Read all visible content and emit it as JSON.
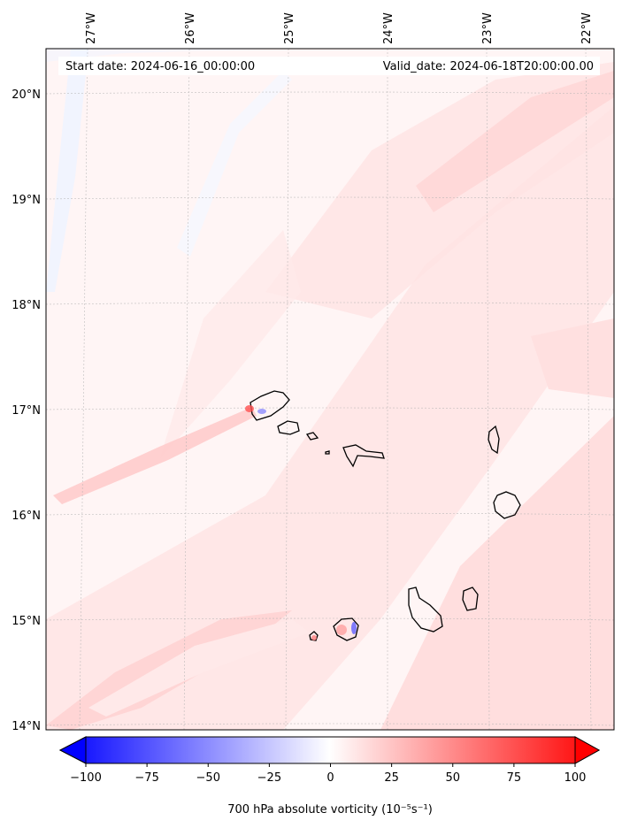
{
  "header": {
    "start_date": "Start date: 2024-06-16_00:00:00",
    "valid_date": "Valid_date: 2024-06-18T20:00:00.00"
  },
  "map": {
    "lon_labels": [
      "27°W",
      "26°W",
      "25°W",
      "24°W",
      "23°W",
      "22°W"
    ],
    "lat_labels": [
      "20°N",
      "19°N",
      "18°N",
      "17°N",
      "16°N",
      "15°N",
      "14°N"
    ],
    "lon_range": [
      -27.3,
      -21.7
    ],
    "lat_range": [
      13.95,
      20.45
    ],
    "grid": true
  },
  "colorbar": {
    "ticks": [
      "−100",
      "−75",
      "−50",
      "−25",
      "0",
      "25",
      "50",
      "75",
      "100"
    ],
    "values": [
      -100,
      -75,
      -50,
      -25,
      0,
      25,
      50,
      75,
      100
    ],
    "range": [
      -100,
      100
    ],
    "label": "700 hPa absolute vorticity (10⁻⁵s⁻¹)",
    "colors": {
      "low": "#0000ff",
      "mid": "#ffffff",
      "high": "#ff0000"
    }
  }
}
